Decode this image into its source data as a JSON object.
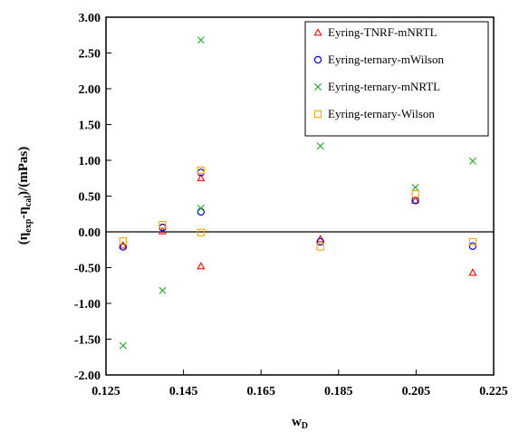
{
  "chart_data": {
    "type": "scatter",
    "xlabel": "w",
    "xlabel_sub": "D",
    "ylabel_parts": [
      "(η",
      "exp",
      "-η",
      "cal",
      ")/(mPas)"
    ],
    "xlim": [
      0.125,
      0.225
    ],
    "ylim": [
      -2.0,
      3.0
    ],
    "x_ticks": [
      0.125,
      0.145,
      0.165,
      0.185,
      0.205,
      0.225
    ],
    "x_tick_labels": [
      "0.125",
      "0.145",
      "0.165",
      "0.185",
      "0.205",
      "0.225"
    ],
    "y_ticks": [
      -2.0,
      -1.5,
      -1.0,
      -0.5,
      0.0,
      0.5,
      1.0,
      1.5,
      2.0,
      2.5,
      3.0
    ],
    "y_tick_labels": [
      "-2.00",
      "-1.50",
      "-1.00",
      "-0.50",
      "0.00",
      "0.50",
      "1.00",
      "1.50",
      "2.00",
      "2.50",
      "3.00"
    ],
    "zero_line": true,
    "grid": false,
    "legend_position": "top-right",
    "series": [
      {
        "name": "Eyring-TNRF-mNRTL",
        "marker": "triangle",
        "color": "#ff0000",
        "points": [
          [
            0.1294,
            -0.19
          ],
          [
            0.1396,
            0.01
          ],
          [
            0.1495,
            0.75
          ],
          [
            0.1495,
            -0.48
          ],
          [
            0.1803,
            -0.1
          ],
          [
            0.2048,
            0.44
          ],
          [
            0.2196,
            -0.57
          ]
        ]
      },
      {
        "name": "Eyring-ternary-mWilson",
        "marker": "circle",
        "color": "#0000cc",
        "points": [
          [
            0.1294,
            -0.21
          ],
          [
            0.1396,
            0.06
          ],
          [
            0.1495,
            0.83
          ],
          [
            0.1495,
            0.28
          ],
          [
            0.1803,
            -0.14
          ],
          [
            0.2048,
            0.44
          ],
          [
            0.2196,
            -0.2
          ]
        ]
      },
      {
        "name": "Eyring-ternary-mNRTL",
        "marker": "x",
        "color": "#33aa33",
        "points": [
          [
            0.1294,
            -1.59
          ],
          [
            0.1396,
            -0.82
          ],
          [
            0.1495,
            2.68
          ],
          [
            0.1495,
            0.33
          ],
          [
            0.1803,
            1.2
          ],
          [
            0.2048,
            0.62
          ],
          [
            0.2196,
            0.99
          ]
        ]
      },
      {
        "name": "Eyring-ternary-Wilson",
        "marker": "square",
        "color": "#ffa500",
        "points": [
          [
            0.1294,
            -0.13
          ],
          [
            0.1396,
            0.1
          ],
          [
            0.1495,
            0.86
          ],
          [
            0.1495,
            -0.01
          ],
          [
            0.1803,
            -0.21
          ],
          [
            0.2048,
            0.53
          ],
          [
            0.2196,
            -0.14
          ]
        ]
      }
    ]
  }
}
